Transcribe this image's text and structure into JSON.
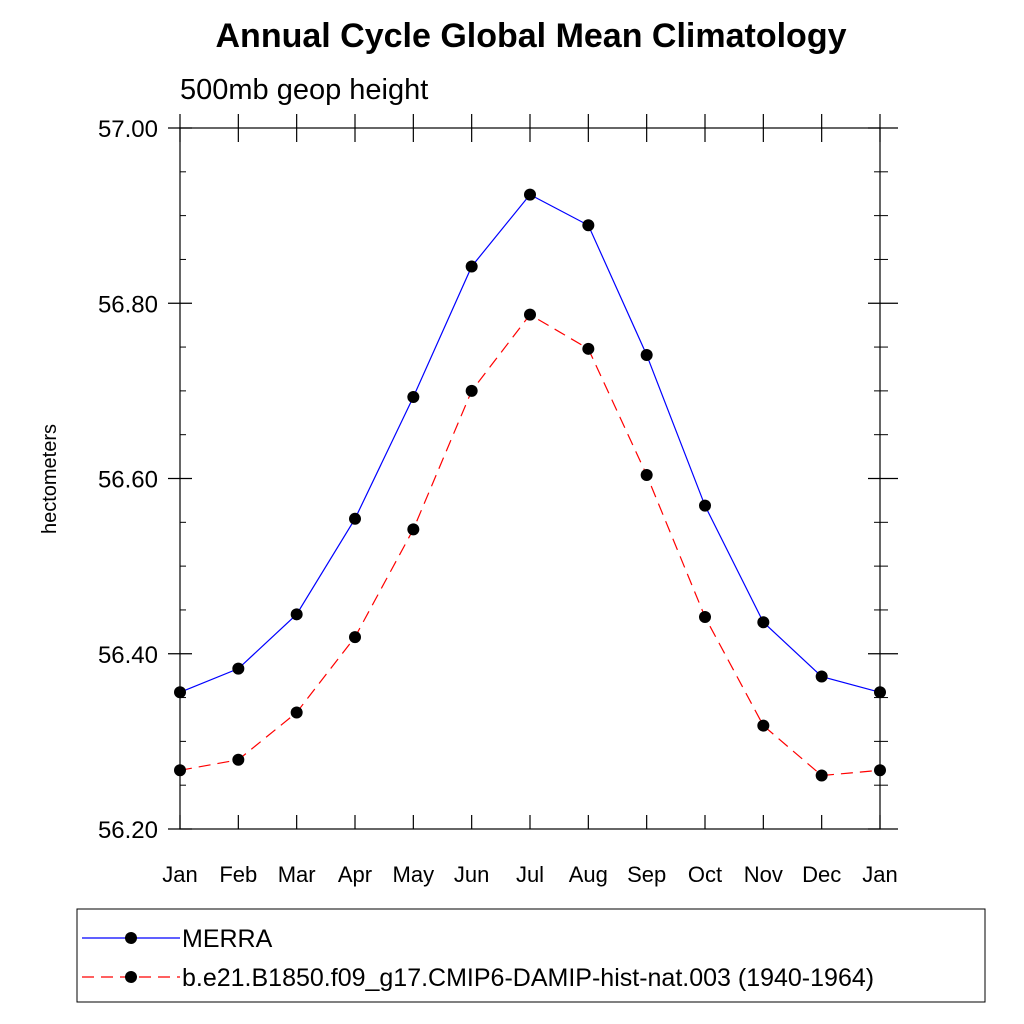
{
  "chart_data": {
    "type": "line",
    "title": "Annual Cycle Global Mean Climatology",
    "subtitle": "500mb geop height",
    "ylabel": "hectometers",
    "xlabel": "",
    "categories": [
      "Jan",
      "Feb",
      "Mar",
      "Apr",
      "May",
      "Jun",
      "Jul",
      "Aug",
      "Sep",
      "Oct",
      "Nov",
      "Dec",
      "Jan"
    ],
    "ylim": [
      56.2,
      57.0
    ],
    "yticks": [
      "57.00",
      "56.80",
      "56.60",
      "56.40",
      "56.20"
    ],
    "ytick_values": [
      57.0,
      56.8,
      56.6,
      56.4,
      56.2
    ],
    "series": [
      {
        "name": "MERRA",
        "color": "#0000ff",
        "style": "solid",
        "values": [
          56.356,
          56.383,
          56.445,
          56.554,
          56.693,
          56.842,
          56.924,
          56.889,
          56.741,
          56.569,
          56.436,
          56.374,
          56.356
        ]
      },
      {
        "name": "b.e21.B1850.f09_g17.CMIP6-DAMIP-hist-nat.003 (1940-1964)",
        "color": "#ff0000",
        "style": "dashed",
        "values": [
          56.267,
          56.279,
          56.333,
          56.419,
          56.542,
          56.7,
          56.787,
          56.748,
          56.604,
          56.442,
          56.318,
          56.261,
          56.267
        ]
      }
    ],
    "grid": false,
    "legend_position": "bottom"
  }
}
